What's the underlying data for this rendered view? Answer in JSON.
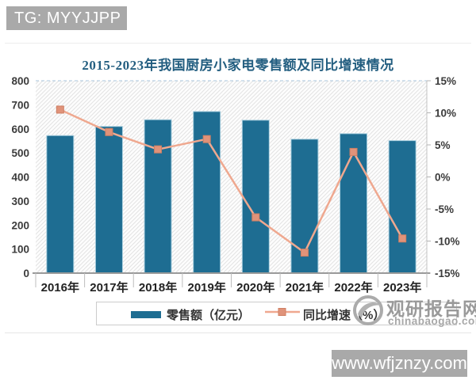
{
  "page": {
    "top_badge": "TG: MYYJJPP",
    "bottom_badge": "www.wfjznzy.com"
  },
  "watermark": {
    "name": "观研报告网",
    "domain": "chinabaogao.com"
  },
  "chart_data": {
    "type": "bar+line combo",
    "title": "2015-2023年我国厨房小家电零售额及同比增速情况",
    "categories": [
      "2016年",
      "2017年",
      "2018年",
      "2019年",
      "2020年",
      "2021年",
      "2022年",
      "2023年"
    ],
    "series": [
      {
        "name": "零售额（亿元）",
        "type": "bar",
        "axis": "left",
        "color": "#1e6d92",
        "values": [
          572,
          610,
          638,
          672,
          636,
          557,
          580,
          551
        ]
      },
      {
        "name": "同比增速（%）",
        "type": "line",
        "axis": "right",
        "color": "#efa88f",
        "marker": "square",
        "marker_color": "#e0937a",
        "values": [
          10.5,
          7.0,
          4.3,
          5.9,
          -6.3,
          -11.8,
          3.9,
          -9.6
        ]
      }
    ],
    "left_axis": {
      "min": 0,
      "max": 800,
      "step": 100,
      "ticks": [
        "800",
        "700",
        "600",
        "500",
        "400",
        "300",
        "200",
        "100",
        "0"
      ]
    },
    "right_axis": {
      "min": -15,
      "max": 15,
      "step": 5,
      "ticks": [
        "15%",
        "10%",
        "5%",
        "0%",
        "-5%",
        "-10%",
        "-15%"
      ]
    },
    "legend_position": "bottom",
    "plot_background": "diagonal-hatch",
    "colors": {
      "bar_fill": "#1e6d92",
      "bar_edge": "#a9cfdf",
      "line": "#efa88f",
      "marker_fill": "#e0937a",
      "marker_edge": "#cf7f63",
      "title": "#235e80",
      "hatch": "#e3e3e3"
    }
  }
}
